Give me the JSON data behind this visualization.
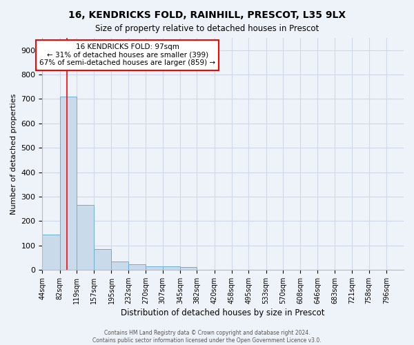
{
  "title": "16, KENDRICKS FOLD, RAINHILL, PRESCOT, L35 9LX",
  "subtitle": "Size of property relative to detached houses in Prescot",
  "xlabel": "Distribution of detached houses by size in Prescot",
  "ylabel": "Number of detached properties",
  "bin_labels": [
    "44sqm",
    "82sqm",
    "119sqm",
    "157sqm",
    "195sqm",
    "232sqm",
    "270sqm",
    "307sqm",
    "345sqm",
    "382sqm",
    "420sqm",
    "458sqm",
    "495sqm",
    "533sqm",
    "570sqm",
    "608sqm",
    "646sqm",
    "683sqm",
    "721sqm",
    "758sqm",
    "796sqm"
  ],
  "bar_values": [
    145,
    710,
    265,
    85,
    35,
    22,
    13,
    13,
    10,
    0,
    0,
    0,
    0,
    0,
    0,
    0,
    0,
    0,
    0,
    0,
    0
  ],
  "bin_edges": [
    44,
    82,
    119,
    157,
    195,
    232,
    270,
    307,
    345,
    382,
    420,
    458,
    495,
    533,
    570,
    608,
    646,
    683,
    721,
    758,
    796
  ],
  "bar_color": "#c9daea",
  "bar_edge_color": "#6aaed6",
  "grid_color": "#d0d8e8",
  "background_color": "#eef2f9",
  "red_line_x": 97,
  "annotation_line1": "16 KENDRICKS FOLD: 97sqm",
  "annotation_line2": "← 31% of detached houses are smaller (399)",
  "annotation_line3": "67% of semi-detached houses are larger (859) →",
  "annotation_box_color": "white",
  "annotation_box_edgecolor": "red",
  "footer_line1": "Contains HM Land Registry data © Crown copyright and database right 2024.",
  "footer_line2": "Contains public sector information licensed under the Open Government Licence v3.0.",
  "ylim": [
    0,
    950
  ],
  "yticks": [
    0,
    100,
    200,
    300,
    400,
    500,
    600,
    700,
    800,
    900
  ]
}
